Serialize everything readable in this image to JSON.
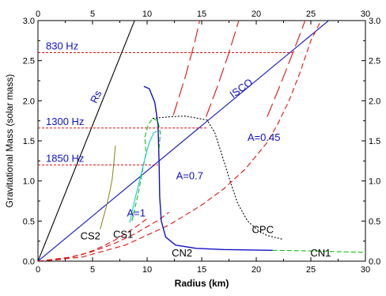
{
  "chart_data": {
    "type": "line",
    "xlabel": "Radius (km)",
    "ylabel": "Gravitational Mass (solar mass)",
    "xlim": [
      0,
      30
    ],
    "ylim": [
      0,
      3.0
    ],
    "x_ticks": [
      "0",
      "5",
      "10",
      "15",
      "20",
      "25",
      "30"
    ],
    "y_ticks": [
      "0.0",
      "0.5",
      "1.0",
      "1.5",
      "2.0",
      "2.5",
      "3.0"
    ],
    "grid": false,
    "colors": {
      "blue": "#1010c8",
      "red": "#e01010",
      "green": "#10c010",
      "cyan": "#10c8e0",
      "olive": "#909020",
      "black": "#000000"
    },
    "series": [
      {
        "key": "rs",
        "color": "#000000",
        "dash": "",
        "points": [
          [
            0,
            0
          ],
          [
            9.0,
            3.05
          ]
        ]
      },
      {
        "key": "isco",
        "color": "#1010c8",
        "dash": "",
        "points": [
          [
            0,
            0
          ],
          [
            30,
            3.38
          ]
        ]
      },
      {
        "key": "a1",
        "color": "#e01010",
        "dash": "7,4",
        "points": [
          [
            0,
            0
          ],
          [
            2,
            0.02
          ],
          [
            4,
            0.08
          ],
          [
            5,
            0.13
          ],
          [
            6,
            0.19
          ],
          [
            7,
            0.26
          ],
          [
            8,
            0.34
          ],
          [
            9,
            0.43
          ],
          [
            10,
            0.53
          ]
        ]
      },
      {
        "key": "a07",
        "color": "#e01010",
        "dash": "7,4",
        "points": [
          [
            0,
            0
          ],
          [
            3,
            0.05
          ],
          [
            5,
            0.12
          ],
          [
            7,
            0.22
          ],
          [
            9,
            0.35
          ],
          [
            11,
            0.51
          ],
          [
            12,
            0.61
          ]
        ]
      },
      {
        "key": "a045",
        "color": "#e01010",
        "dash": "7,4",
        "points": [
          [
            0,
            0
          ],
          [
            4,
            0.05
          ],
          [
            8,
            0.2
          ],
          [
            12,
            0.45
          ],
          [
            15,
            0.7
          ],
          [
            17,
            0.9
          ],
          [
            19,
            1.15
          ],
          [
            21,
            1.48
          ],
          [
            22,
            1.72
          ],
          [
            23,
            2.0
          ],
          [
            24,
            2.35
          ],
          [
            25,
            2.75
          ],
          [
            26,
            3.02
          ]
        ]
      },
      {
        "key": "red-long-1",
        "color": "#e01010",
        "dash": "18,6",
        "points": [
          [
            12.4,
            1.82
          ],
          [
            13.5,
            2.3
          ],
          [
            14.4,
            2.75
          ],
          [
            14.9,
            3.05
          ]
        ]
      },
      {
        "key": "red-long-2",
        "color": "#e01010",
        "dash": "18,6",
        "points": [
          [
            15.4,
            1.8
          ],
          [
            16.5,
            2.2
          ],
          [
            17.5,
            2.6
          ],
          [
            18.4,
            3.0
          ]
        ]
      },
      {
        "key": "red-long-3",
        "color": "#e01010",
        "dash": "18,6",
        "points": [
          [
            21.0,
            1.8
          ],
          [
            22.2,
            2.2
          ],
          [
            23.3,
            2.58
          ],
          [
            24.2,
            2.9
          ],
          [
            24.6,
            3.05
          ]
        ]
      },
      {
        "key": "cn2",
        "color": "#1010c8",
        "dash": "",
        "points": [
          [
            9.7,
            2.18
          ],
          [
            10.2,
            2.15
          ],
          [
            10.7,
            1.98
          ],
          [
            11.0,
            1.7
          ],
          [
            11.1,
            1.2
          ],
          [
            11.15,
            0.8
          ],
          [
            11.3,
            0.5
          ],
          [
            11.7,
            0.3
          ],
          [
            12.6,
            0.2
          ],
          [
            14.5,
            0.16
          ],
          [
            17,
            0.145
          ],
          [
            21.5,
            0.135
          ]
        ]
      },
      {
        "key": "cn1",
        "color": "#10c010",
        "dash": "6,3",
        "points": [
          [
            21.5,
            0.135
          ],
          [
            24,
            0.13
          ],
          [
            27,
            0.12
          ],
          [
            30,
            0.11
          ]
        ]
      },
      {
        "key": "cs1-green",
        "color": "#10c010",
        "dash": "6,3",
        "points": [
          [
            8.6,
            0.5
          ],
          [
            9.2,
            0.85
          ],
          [
            9.6,
            1.15
          ],
          [
            9.9,
            1.35
          ],
          [
            9.8,
            1.55
          ],
          [
            10.1,
            1.7
          ],
          [
            10.5,
            1.78
          ],
          [
            11.0,
            1.75
          ],
          [
            11.2,
            1.6
          ],
          [
            11.1,
            1.4
          ]
        ]
      },
      {
        "key": "cs1-cyan",
        "color": "#10c8e0",
        "dash": "",
        "points": [
          [
            8.4,
            0.48
          ],
          [
            8.9,
            0.78
          ],
          [
            9.3,
            1.0
          ],
          [
            9.8,
            1.28
          ],
          [
            10.2,
            1.48
          ],
          [
            10.6,
            1.6
          ],
          [
            10.9,
            1.62
          ]
        ]
      },
      {
        "key": "cs2",
        "color": "#909020",
        "dash": "",
        "points": [
          [
            5.7,
            0.4
          ],
          [
            6.0,
            0.55
          ],
          [
            6.3,
            0.7
          ],
          [
            6.6,
            0.88
          ],
          [
            6.8,
            1.02
          ],
          [
            6.9,
            1.15
          ],
          [
            7.0,
            1.3
          ],
          [
            7.1,
            1.44
          ]
        ]
      },
      {
        "key": "cpc",
        "color": "#000000",
        "dash": "2,2",
        "points": [
          [
            10.5,
            1.78
          ],
          [
            12,
            1.8
          ],
          [
            13.5,
            1.81
          ],
          [
            15.5,
            1.76
          ],
          [
            16.2,
            1.6
          ],
          [
            16.8,
            1.35
          ],
          [
            17.6,
            1.0
          ],
          [
            18.3,
            0.72
          ],
          [
            19.2,
            0.5
          ],
          [
            20.2,
            0.38
          ],
          [
            21.0,
            0.32
          ],
          [
            22.5,
            0.27
          ]
        ]
      }
    ],
    "frequency_lines": [
      {
        "label": "830 Hz",
        "y": 2.6,
        "x_end": 23.5
      },
      {
        "label": "1300 Hz",
        "y": 1.66,
        "x_end": 15.5
      },
      {
        "label": "1850 Hz",
        "y": 1.2,
        "x_end": 11.0
      }
    ],
    "annotations": [
      {
        "key": "rs",
        "text": "Rs",
        "x": 5.6,
        "y": 2.03,
        "rotate": -63,
        "color": "#1010c8"
      },
      {
        "key": "isco",
        "text": "ISCO",
        "x": 18.8,
        "y": 2.12,
        "rotate": -36,
        "color": "#1010c8"
      },
      {
        "key": "a045",
        "text": "A=0.45",
        "x": 20.7,
        "y": 1.5,
        "rotate": 0,
        "color": "#1010c8"
      },
      {
        "key": "a07",
        "text": "A=0.7",
        "x": 13.9,
        "y": 1.02,
        "rotate": 0,
        "color": "#1010c8"
      },
      {
        "key": "a1",
        "text": "A=1",
        "x": 9.0,
        "y": 0.56,
        "rotate": 0,
        "color": "#1010c8"
      },
      {
        "key": "cs2",
        "text": "CS2",
        "x": 4.8,
        "y": 0.27,
        "rotate": 0,
        "color": "#000000"
      },
      {
        "key": "cs1",
        "text": "CS1",
        "x": 7.8,
        "y": 0.29,
        "rotate": 0,
        "color": "#000000"
      },
      {
        "key": "cn2",
        "text": "CN2",
        "x": 13.2,
        "y": 0.06,
        "rotate": 0,
        "color": "#000000"
      },
      {
        "key": "cn1",
        "text": "CN1",
        "x": 25.9,
        "y": 0.06,
        "rotate": 0,
        "color": "#000000"
      },
      {
        "key": "cpc",
        "text": "CPC",
        "x": 20.6,
        "y": 0.35,
        "rotate": 0,
        "color": "#000000"
      }
    ]
  }
}
